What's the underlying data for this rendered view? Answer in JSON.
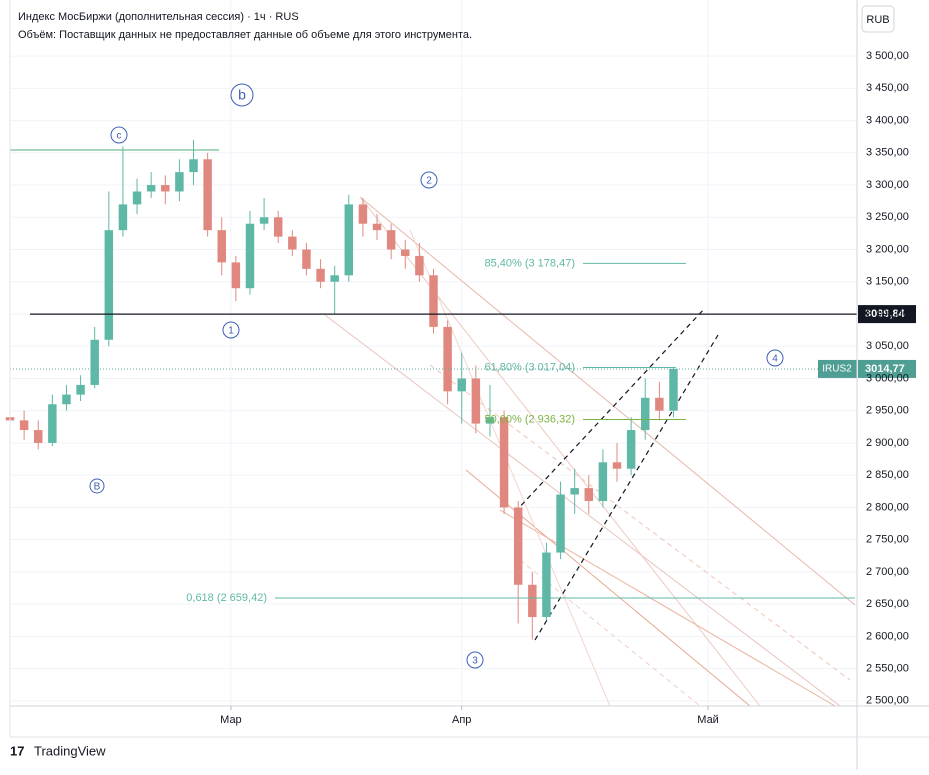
{
  "header": {
    "title": "Индекс МосБиржи (дополнительная сессия) · 1ч · RUS",
    "volume_note": "Объём: Поставщик данных не предоставляет данные об объеме для этого инструмента.",
    "currency": "RUB",
    "logo": "TradingView"
  },
  "chart_data": {
    "type": "candlestick",
    "x": [
      0,
      2,
      4,
      6,
      8,
      10,
      12,
      14,
      16,
      18,
      20,
      22,
      24,
      26,
      28,
      30,
      32,
      34,
      36,
      38,
      40,
      42,
      44,
      46,
      48,
      50,
      52,
      54,
      56,
      58,
      60,
      62,
      64,
      66,
      68,
      70,
      72,
      74,
      76,
      78,
      80,
      82,
      84,
      86,
      88,
      90,
      92,
      94
    ],
    "open": [
      2940,
      2935,
      2920,
      2900,
      2960,
      2975,
      2990,
      3060,
      3230,
      3270,
      3290,
      3300,
      3290,
      3320,
      3340,
      3230,
      3180,
      3140,
      3240,
      3250,
      3220,
      3200,
      3170,
      3150,
      3160,
      3270,
      3240,
      3230,
      3200,
      3190,
      3160,
      3080,
      2980,
      3000,
      2930,
      2940,
      2800,
      2680,
      2630,
      2730,
      2820,
      2830,
      2810,
      2870,
      2860,
      2920,
      2970,
      2950
    ],
    "high": [
      2955,
      2950,
      2935,
      2975,
      2990,
      3005,
      3080,
      3290,
      3360,
      3310,
      3320,
      3315,
      3340,
      3370,
      3350,
      3250,
      3190,
      3260,
      3280,
      3260,
      3230,
      3210,
      3185,
      3175,
      3285,
      3280,
      3255,
      3240,
      3215,
      3210,
      3170,
      3090,
      3040,
      3020,
      2990,
      2950,
      2810,
      2700,
      2745,
      2840,
      2860,
      2850,
      2890,
      2900,
      2940,
      3000,
      2995,
      3018
    ],
    "low": [
      2920,
      2905,
      2890,
      2895,
      2950,
      2965,
      2985,
      3050,
      3220,
      3255,
      3280,
      3270,
      3275,
      3300,
      3220,
      3160,
      3120,
      3130,
      3230,
      3210,
      3190,
      3160,
      3140,
      3100,
      3150,
      3220,
      3215,
      3185,
      3170,
      3150,
      3070,
      2960,
      2930,
      2915,
      2910,
      2790,
      2620,
      2595,
      2625,
      2720,
      2790,
      2790,
      2800,
      2840,
      2850,
      2905,
      2935,
      2940
    ],
    "close": [
      2935,
      2920,
      2900,
      2960,
      2975,
      2990,
      3060,
      3230,
      3270,
      3290,
      3300,
      3290,
      3320,
      3340,
      3230,
      3180,
      3140,
      3240,
      3250,
      3220,
      3200,
      3170,
      3150,
      3160,
      3270,
      3240,
      3230,
      3200,
      3190,
      3160,
      3080,
      2980,
      3000,
      2930,
      2940,
      2800,
      2680,
      2630,
      2730,
      2820,
      2830,
      2810,
      2870,
      2860,
      2920,
      2970,
      2950,
      3015
    ],
    "up_color": "#5fb8a5",
    "down_color": "#e0887f",
    "xlim": [
      0,
      120
    ],
    "xticks": [
      {
        "value": 31.3,
        "label": "Мар"
      },
      {
        "value": 64,
        "label": "Апр"
      },
      {
        "value": 98.9,
        "label": "Май"
      }
    ],
    "ylim": [
      2492,
      3587
    ],
    "yticks": [
      {
        "value": 2500,
        "label": "2 500,00"
      },
      {
        "value": 2550,
        "label": "2 550,00"
      },
      {
        "value": 2600,
        "label": "2 600,00"
      },
      {
        "value": 2650,
        "label": "2 650,00"
      },
      {
        "value": 2700,
        "label": "2 700,00"
      },
      {
        "value": 2750,
        "label": "2 750,00"
      },
      {
        "value": 2800,
        "label": "2 800,00"
      },
      {
        "value": 2850,
        "label": "2 850,00"
      },
      {
        "value": 2900,
        "label": "2 900,00"
      },
      {
        "value": 2950,
        "label": "2 950,00"
      },
      {
        "value": 3000,
        "label": "3 000,00"
      },
      {
        "value": 3050,
        "label": "3 050,00"
      },
      {
        "value": 3100,
        "label": "3 100,00"
      },
      {
        "value": 3150,
        "label": "3 150,00"
      },
      {
        "value": 3200,
        "label": "3 200,00"
      },
      {
        "value": 3250,
        "label": "3 250,00"
      },
      {
        "value": 3300,
        "label": "3 300,00"
      },
      {
        "value": 3350,
        "label": "3 350,00"
      },
      {
        "value": 3400,
        "label": "3 400,00"
      },
      {
        "value": 3450,
        "label": "3 450,00"
      },
      {
        "value": 3500,
        "label": "3 500,00"
      }
    ],
    "grid": true,
    "fib_levels": [
      {
        "value": 3178.47,
        "label": "85,40% (3 178,47)"
      },
      {
        "value": 3017.04,
        "label": "61,80% (3 017,04)"
      },
      {
        "value": 2936.32,
        "label": "50,00% (2 936,32)"
      },
      {
        "value": 2659.42,
        "label": "0,618 (2 659,42)"
      }
    ],
    "level_line": {
      "value": 3099.84,
      "label": "3099,84"
    },
    "last_price": {
      "value": 3014.77,
      "label": "3014,77",
      "symbol": "IRUS2"
    },
    "wave_labels": [
      "b",
      "c",
      "2",
      "1",
      "4",
      "B",
      "3"
    ]
  }
}
